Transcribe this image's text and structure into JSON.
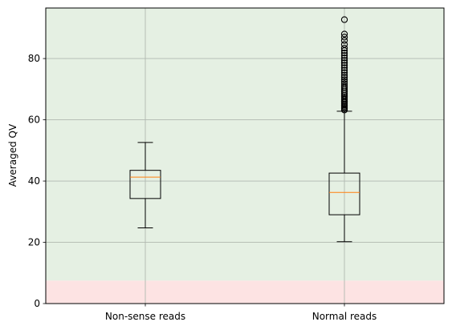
{
  "chart_data": {
    "type": "box",
    "title": "",
    "xlabel": "",
    "ylabel": "Averaged QV",
    "ylim": [
      0,
      96.5
    ],
    "yticks": [
      0,
      20,
      40,
      60,
      80
    ],
    "grid": true,
    "categories": [
      "Non-sense reads",
      "Normal reads"
    ],
    "bands": [
      {
        "from": 0,
        "to": 7.5,
        "color": "#fde3e3"
      },
      {
        "from": 7.5,
        "to": 96.5,
        "color": "#e5f0e3"
      }
    ],
    "colors": {
      "box": "#000000",
      "median": "#ff7f0e",
      "grid": "#b0b8b0"
    },
    "boxes": [
      {
        "category": "Non-sense reads",
        "whisker_low": 24.7,
        "q1": 34.3,
        "median": 41.3,
        "q3": 43.5,
        "whisker_high": 52.6,
        "outliers": []
      },
      {
        "category": "Normal reads",
        "whisker_low": 20.2,
        "q1": 29.0,
        "median": 36.3,
        "q3": 42.6,
        "whisker_high": 62.8,
        "outliers": [
          63.2,
          63.6,
          64.0,
          64.4,
          64.8,
          65.2,
          65.7,
          66.1,
          66.6,
          67.0,
          67.5,
          68.0,
          68.6,
          69.2,
          69.8,
          70.4,
          71.0,
          71.7,
          72.4,
          73.1,
          73.9,
          74.6,
          75.4,
          76.2,
          77.0,
          77.8,
          78.6,
          79.4,
          80.2,
          81.0,
          81.8,
          82.6,
          83.4,
          84.6,
          85.9,
          87.0,
          88.0,
          92.7
        ]
      }
    ]
  }
}
